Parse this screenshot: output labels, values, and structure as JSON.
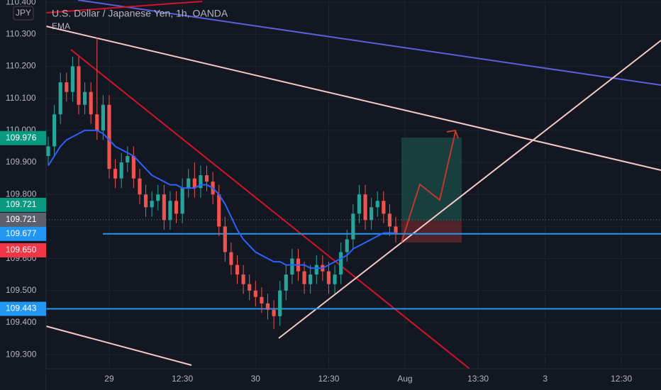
{
  "chart_data": {
    "type": "candlestick",
    "symbol": "JPY",
    "title": "U.S. Dollar / Japanese Yen, 1h, OANDA",
    "indicator": "EMA",
    "up_color": "#26a69a",
    "down_color": "#ef5350",
    "grid": true,
    "open": [
      109.92,
      109.95,
      110.05,
      110.15,
      110.12,
      110.2,
      110.08,
      110.12,
      110.05,
      110.0,
      110.08,
      109.88,
      109.85,
      109.9,
      109.92,
      109.85,
      109.8,
      109.76,
      109.78,
      109.8,
      109.72,
      109.78,
      109.74,
      109.82,
      109.85,
      109.82,
      109.86,
      109.84,
      109.8,
      109.7,
      109.62,
      109.58,
      109.55,
      109.52,
      109.5,
      109.48,
      109.46,
      109.44,
      109.42,
      109.5,
      109.55,
      109.6,
      109.56,
      109.52,
      109.55,
      109.58,
      109.56,
      109.52,
      109.55,
      109.62,
      109.66,
      109.74,
      109.8,
      109.72,
      109.76,
      109.78,
      109.74,
      109.7
    ],
    "high": [
      109.98,
      110.08,
      110.18,
      110.18,
      110.23,
      110.23,
      110.15,
      110.15,
      110.29,
      110.11,
      110.11,
      109.91,
      109.93,
      109.95,
      109.95,
      109.88,
      109.83,
      109.81,
      109.83,
      109.83,
      109.81,
      109.81,
      109.85,
      109.88,
      109.9,
      109.89,
      109.89,
      109.87,
      109.83,
      109.73,
      109.65,
      109.61,
      109.58,
      109.55,
      109.53,
      109.51,
      109.49,
      109.47,
      109.53,
      109.58,
      109.63,
      109.63,
      109.59,
      109.58,
      109.61,
      109.61,
      109.59,
      109.58,
      109.65,
      109.69,
      109.77,
      109.83,
      109.83,
      109.79,
      109.81,
      109.81,
      109.77,
      109.73
    ],
    "low": [
      109.89,
      109.92,
      110.02,
      110.09,
      110.09,
      110.05,
      110.05,
      110.02,
      109.97,
      109.97,
      109.85,
      109.82,
      109.82,
      109.87,
      109.82,
      109.77,
      109.73,
      109.73,
      109.75,
      109.69,
      109.69,
      109.71,
      109.71,
      109.79,
      109.79,
      109.79,
      109.81,
      109.77,
      109.67,
      109.59,
      109.55,
      109.52,
      109.49,
      109.47,
      109.45,
      109.43,
      109.41,
      109.38,
      109.39,
      109.47,
      109.52,
      109.53,
      109.49,
      109.49,
      109.52,
      109.53,
      109.49,
      109.49,
      109.52,
      109.59,
      109.63,
      109.71,
      109.69,
      109.69,
      109.73,
      109.71,
      109.67,
      109.65
    ],
    "close": [
      109.95,
      110.05,
      110.15,
      110.12,
      110.2,
      110.08,
      110.12,
      110.05,
      110.0,
      110.08,
      109.88,
      109.85,
      109.9,
      109.92,
      109.85,
      109.8,
      109.76,
      109.78,
      109.8,
      109.72,
      109.78,
      109.74,
      109.82,
      109.85,
      109.82,
      109.86,
      109.84,
      109.8,
      109.7,
      109.62,
      109.58,
      109.55,
      109.52,
      109.5,
      109.48,
      109.46,
      109.44,
      109.42,
      109.5,
      109.55,
      109.6,
      109.56,
      109.52,
      109.55,
      109.58,
      109.56,
      109.52,
      109.55,
      109.62,
      109.66,
      109.74,
      109.8,
      109.72,
      109.76,
      109.78,
      109.74,
      109.7,
      109.68
    ],
    "ema": {
      "color": "#2962ff",
      "values": [
        109.89,
        109.92,
        109.95,
        109.97,
        109.98,
        109.99,
        110.0,
        110.0,
        110.0,
        109.99,
        109.97,
        109.95,
        109.94,
        109.93,
        109.92,
        109.9,
        109.88,
        109.86,
        109.85,
        109.84,
        109.83,
        109.83,
        109.82,
        109.82,
        109.82,
        109.83,
        109.83,
        109.82,
        109.8,
        109.77,
        109.73,
        109.69,
        109.66,
        109.64,
        109.62,
        109.61,
        109.6,
        109.59,
        109.59,
        109.58,
        109.58,
        109.58,
        109.58,
        109.57,
        109.57,
        109.57,
        109.58,
        109.59,
        109.6,
        109.61,
        109.63,
        109.64,
        109.65,
        109.66,
        109.67,
        109.68,
        109.68,
        109.68
      ]
    },
    "xlim": [
      -0.35,
      100.5
    ],
    "xticks": [
      {
        "value": 10,
        "label": "29"
      },
      {
        "value": 22,
        "label": "12:30"
      },
      {
        "value": 34,
        "label": "30"
      },
      {
        "value": 46,
        "label": "12:30"
      },
      {
        "value": 58.5,
        "label": "Aug"
      },
      {
        "value": 70.5,
        "label": "13:30"
      },
      {
        "value": 81.5,
        "label": "3"
      },
      {
        "value": 94,
        "label": "12:30"
      }
    ],
    "ylim": [
      109.256,
      110.407
    ],
    "yticks": [
      {
        "value": 109.3,
        "label": "109.300"
      },
      {
        "value": 109.4,
        "label": "109.400"
      },
      {
        "value": 109.5,
        "label": "109.500"
      },
      {
        "value": 109.6,
        "label": "109.600"
      },
      {
        "value": 109.7,
        "label": "109.700"
      },
      {
        "value": 109.8,
        "label": "109.800"
      },
      {
        "value": 109.9,
        "label": "109.900"
      },
      {
        "value": 110.0,
        "label": "110.000"
      },
      {
        "value": 110.1,
        "label": "110.100"
      },
      {
        "value": 110.2,
        "label": "110.200"
      },
      {
        "value": 110.3,
        "label": "110.300"
      },
      {
        "value": 110.4,
        "label": "110.400"
      }
    ],
    "price_tags": [
      {
        "value": 109.976,
        "label": "109.976",
        "color": "#089981"
      },
      {
        "value": 109.721,
        "label": "109.721",
        "color": "#089981"
      },
      {
        "value": 109.721,
        "label": "109.721",
        "color": "#5d606b"
      },
      {
        "value": 109.677,
        "label": "109.677",
        "color": "#2196f3"
      },
      {
        "value": 109.65,
        "label": "109.650",
        "color": "#f23645"
      },
      {
        "value": 109.443,
        "label": "109.443",
        "color": "#2196f3"
      }
    ]
  }
}
